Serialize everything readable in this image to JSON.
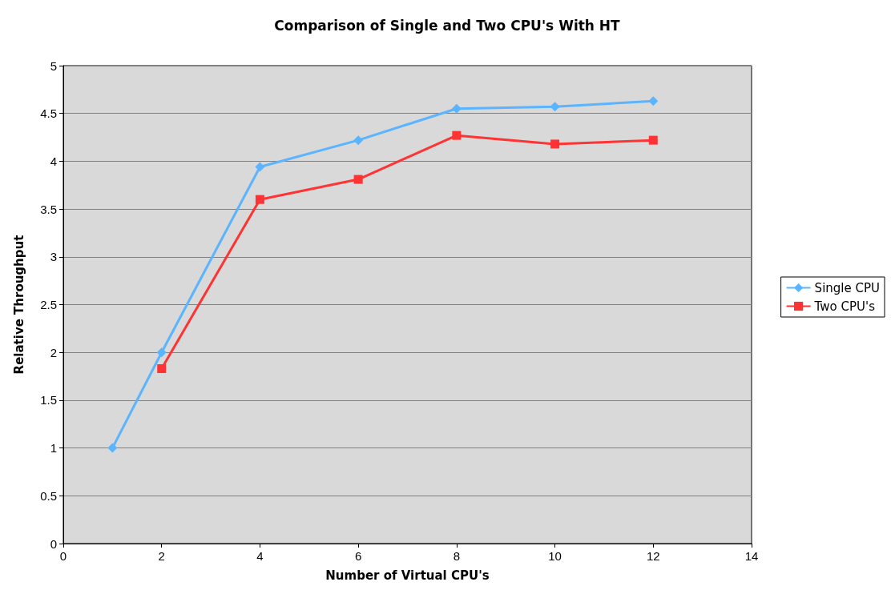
{
  "chart_data": {
    "type": "line",
    "title": "Comparison of Single and Two CPU's With HT",
    "xlabel": "Number of Virtual CPU's",
    "ylabel": "Relative Throughput",
    "xlim": [
      0,
      14
    ],
    "xticks": [
      0,
      2,
      4,
      6,
      8,
      10,
      12,
      14
    ],
    "ylim": [
      0,
      5
    ],
    "yticks": [
      0,
      0.5,
      1,
      1.5,
      2,
      2.5,
      3,
      3.5,
      4,
      4.5,
      5
    ],
    "grid": "y",
    "legend": "right",
    "series": [
      {
        "name": "Single CPU",
        "color": "#5ab4ff",
        "marker": "diamond",
        "x": [
          1,
          2,
          4,
          6,
          8,
          10,
          12
        ],
        "values": [
          1.0,
          2.0,
          3.94,
          4.22,
          4.55,
          4.57,
          4.63
        ]
      },
      {
        "name": "Two CPU's",
        "color": "#ff3333",
        "marker": "square",
        "x": [
          2,
          4,
          6,
          8,
          10,
          12
        ],
        "values": [
          1.83,
          3.6,
          3.81,
          4.27,
          4.18,
          4.22
        ]
      }
    ]
  }
}
